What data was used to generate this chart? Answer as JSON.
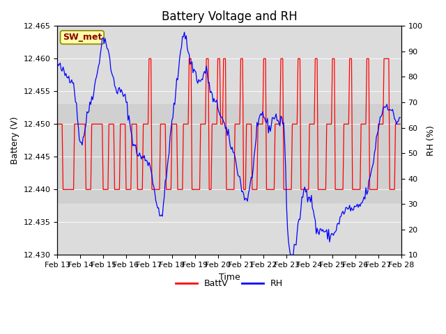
{
  "title": "Battery Voltage and RH",
  "xlabel": "Time",
  "ylabel_left": "Battery (V)",
  "ylabel_right": "RH (%)",
  "ylim_left": [
    12.43,
    12.465
  ],
  "ylim_right": [
    10,
    100
  ],
  "yticks_left": [
    12.43,
    12.435,
    12.44,
    12.445,
    12.45,
    12.455,
    12.46,
    12.465
  ],
  "yticks_right": [
    10,
    20,
    30,
    40,
    50,
    60,
    70,
    80,
    90,
    100
  ],
  "station_label": "SW_met",
  "background_color": "#ffffff",
  "plot_bg_color": "#dcdcdc",
  "title_fontsize": 12,
  "axis_fontsize": 9,
  "tick_fontsize": 8,
  "legend_fontsize": 9,
  "gray_band_low": 12.438,
  "gray_band_high": 12.453
}
